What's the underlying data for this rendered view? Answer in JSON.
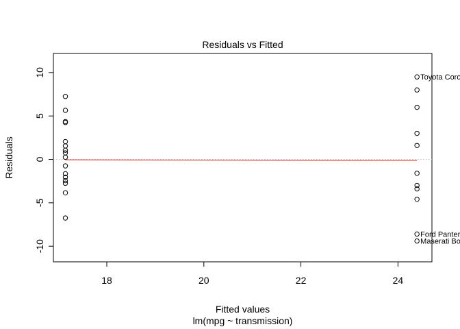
{
  "chart_data": {
    "type": "scatter",
    "title": "Residuals vs Fitted",
    "xlabel": "Fitted values",
    "sublabel": "lm(mpg ~ transmission)",
    "ylabel": "Residuals",
    "xlim": [
      16.9,
      24.7
    ],
    "ylim": [
      -11.8,
      12.2
    ],
    "xticks": [
      18,
      20,
      22,
      24
    ],
    "yticks": [
      -10,
      -5,
      0,
      5,
      10
    ],
    "grid": false,
    "groups": [
      {
        "x": 17.147,
        "y": [
          7.25,
          5.65,
          4.35,
          4.25,
          2.05,
          1.55,
          1.05,
          0.75,
          0.25,
          -0.75,
          -1.65,
          -2.05,
          -2.45,
          -2.75,
          -3.85,
          -6.75
        ]
      },
      {
        "x": 24.392,
        "y": [
          9.5,
          8.0,
          6.0,
          3.0,
          1.6,
          -1.6,
          -3.0,
          -3.4,
          -4.6,
          -8.6,
          -9.4
        ]
      }
    ],
    "point_labels": [
      {
        "text": "Toyota Corolla",
        "x": 24.392,
        "y": 9.5
      },
      {
        "text": "Ford Pantera L",
        "x": 24.392,
        "y": -8.6
      },
      {
        "text": "Maserati Bora",
        "x": 24.392,
        "y": -9.4
      }
    ],
    "reference_line": {
      "y": 0,
      "color": "#bebebe",
      "style": "dotted"
    },
    "smoother": {
      "color": "#dd2222",
      "points": [
        [
          17.147,
          -0.05
        ],
        [
          20.77,
          -0.1
        ],
        [
          24.392,
          -0.12
        ]
      ]
    }
  }
}
